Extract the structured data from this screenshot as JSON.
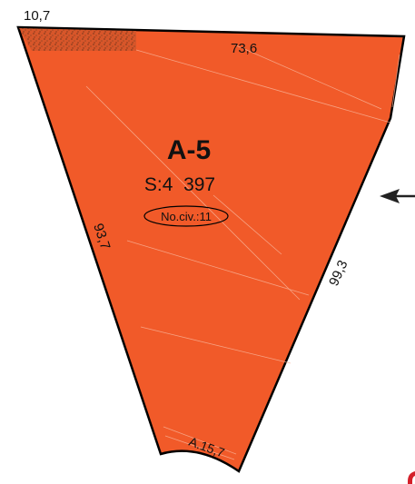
{
  "parcel": {
    "id": "A-5",
    "area": "S:4  397",
    "civic_number": "No.civ.:11",
    "fill_color": "#f15a29",
    "outline_color": "#000000"
  },
  "dimensions": {
    "top_left": "10,7",
    "top": "73,6",
    "left": "93,7",
    "right": "99,3",
    "bottom": "A.15,7"
  },
  "indicator": {
    "arrow": "left-arrow-icon",
    "edge_mark": "red-partial-label"
  }
}
